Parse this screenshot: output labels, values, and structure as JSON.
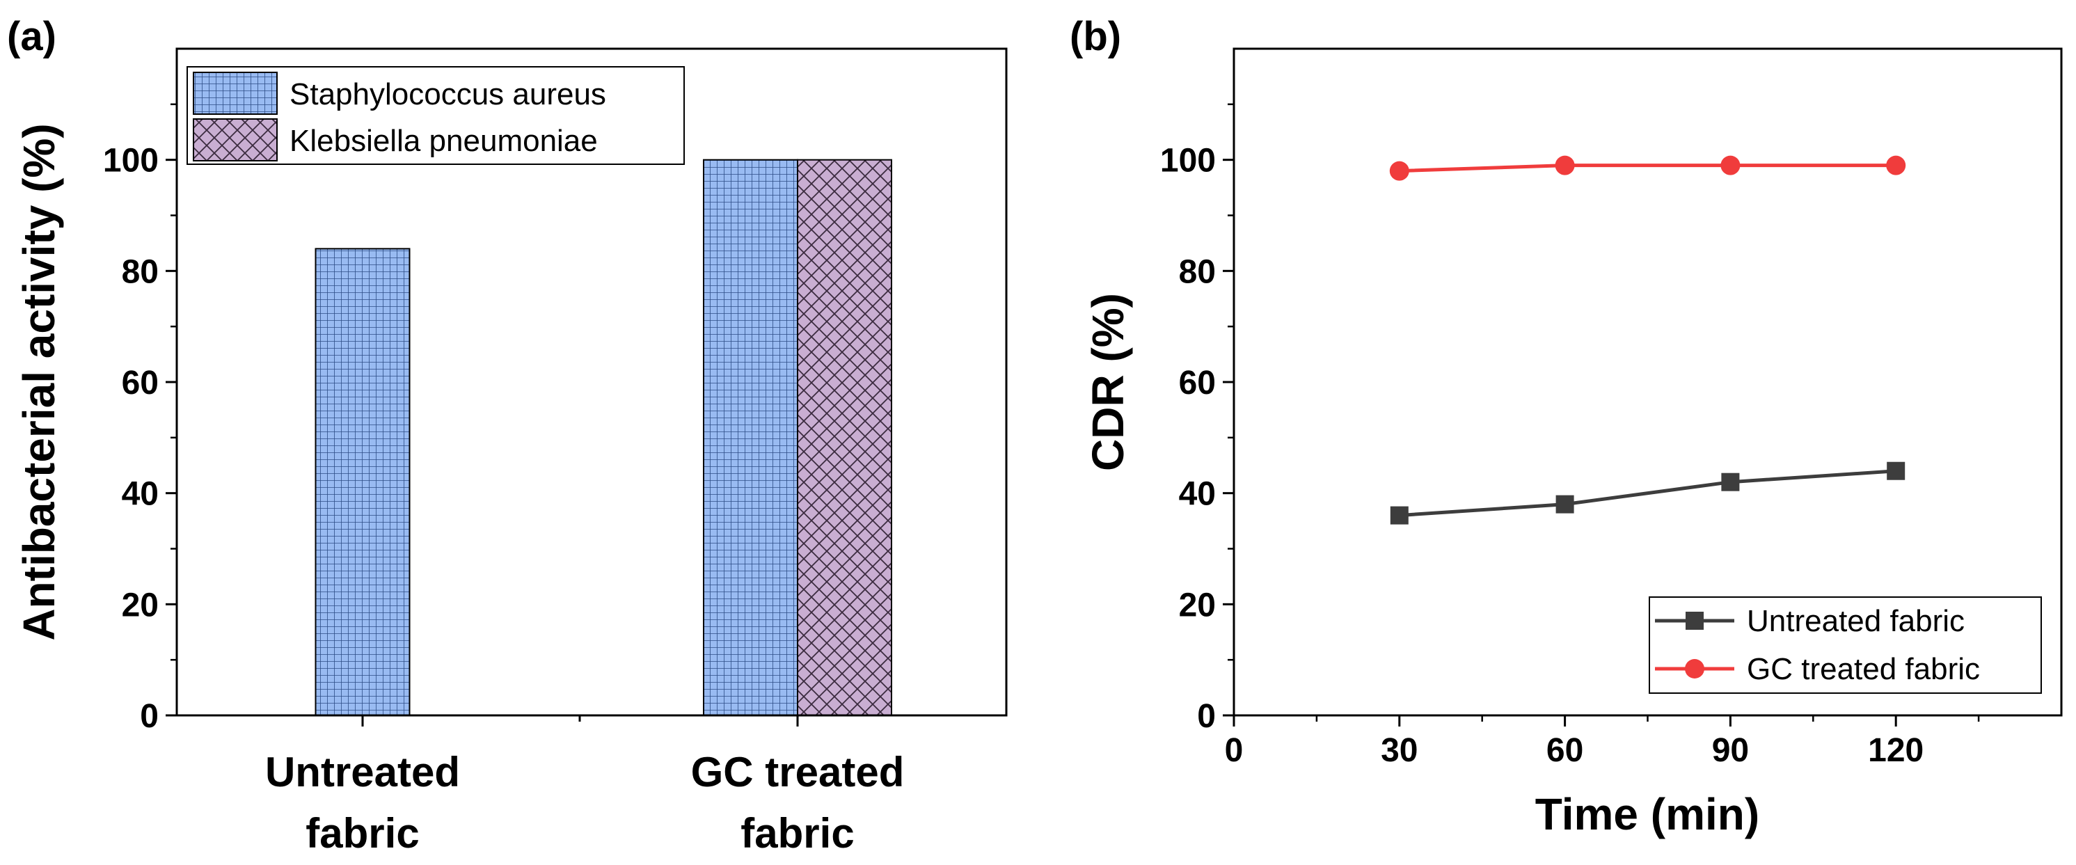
{
  "chart_data": [
    {
      "type": "bar",
      "panel_label": "(a)",
      "title": "",
      "xlabel": "",
      "ylabel": "Antibacterial activity (%)",
      "ylim": [
        0,
        120
      ],
      "yticks": [
        "0",
        "20",
        "40",
        "60",
        "80",
        "100"
      ],
      "categories": [
        {
          "line1": "Untreated",
          "line2": "fabric"
        },
        {
          "line1": "GC treated",
          "line2": "fabric"
        }
      ],
      "series": [
        {
          "name": "Staphylococcus aureus",
          "values": [
            84,
            100
          ],
          "color": "#99bbf2",
          "pattern": "grid"
        },
        {
          "name": "Klebsiella pneumoniae",
          "values": [
            null,
            100
          ],
          "color": "#c9aed2",
          "pattern": "crosshatch"
        }
      ],
      "legend_position": "top-left",
      "grid": false
    },
    {
      "type": "line",
      "panel_label": "(b)",
      "title": "",
      "xlabel": "Time (min)",
      "ylabel": "CDR (%)",
      "xlim": [
        0,
        150
      ],
      "ylim": [
        0,
        120
      ],
      "xticks": [
        "0",
        "30",
        "60",
        "90",
        "120"
      ],
      "yticks": [
        "0",
        "20",
        "40",
        "60",
        "80",
        "100"
      ],
      "series": [
        {
          "name": "Untreated fabric",
          "x": [
            30,
            60,
            90,
            120
          ],
          "y": [
            36,
            38,
            42,
            44
          ],
          "color": "#3d3d3d",
          "marker": "square"
        },
        {
          "name": "GC treated fabric",
          "x": [
            30,
            60,
            90,
            120
          ],
          "y": [
            98,
            99,
            99,
            99
          ],
          "color": "#f03c3c",
          "marker": "circle"
        }
      ],
      "legend_position": "bottom-right",
      "grid": false
    }
  ]
}
